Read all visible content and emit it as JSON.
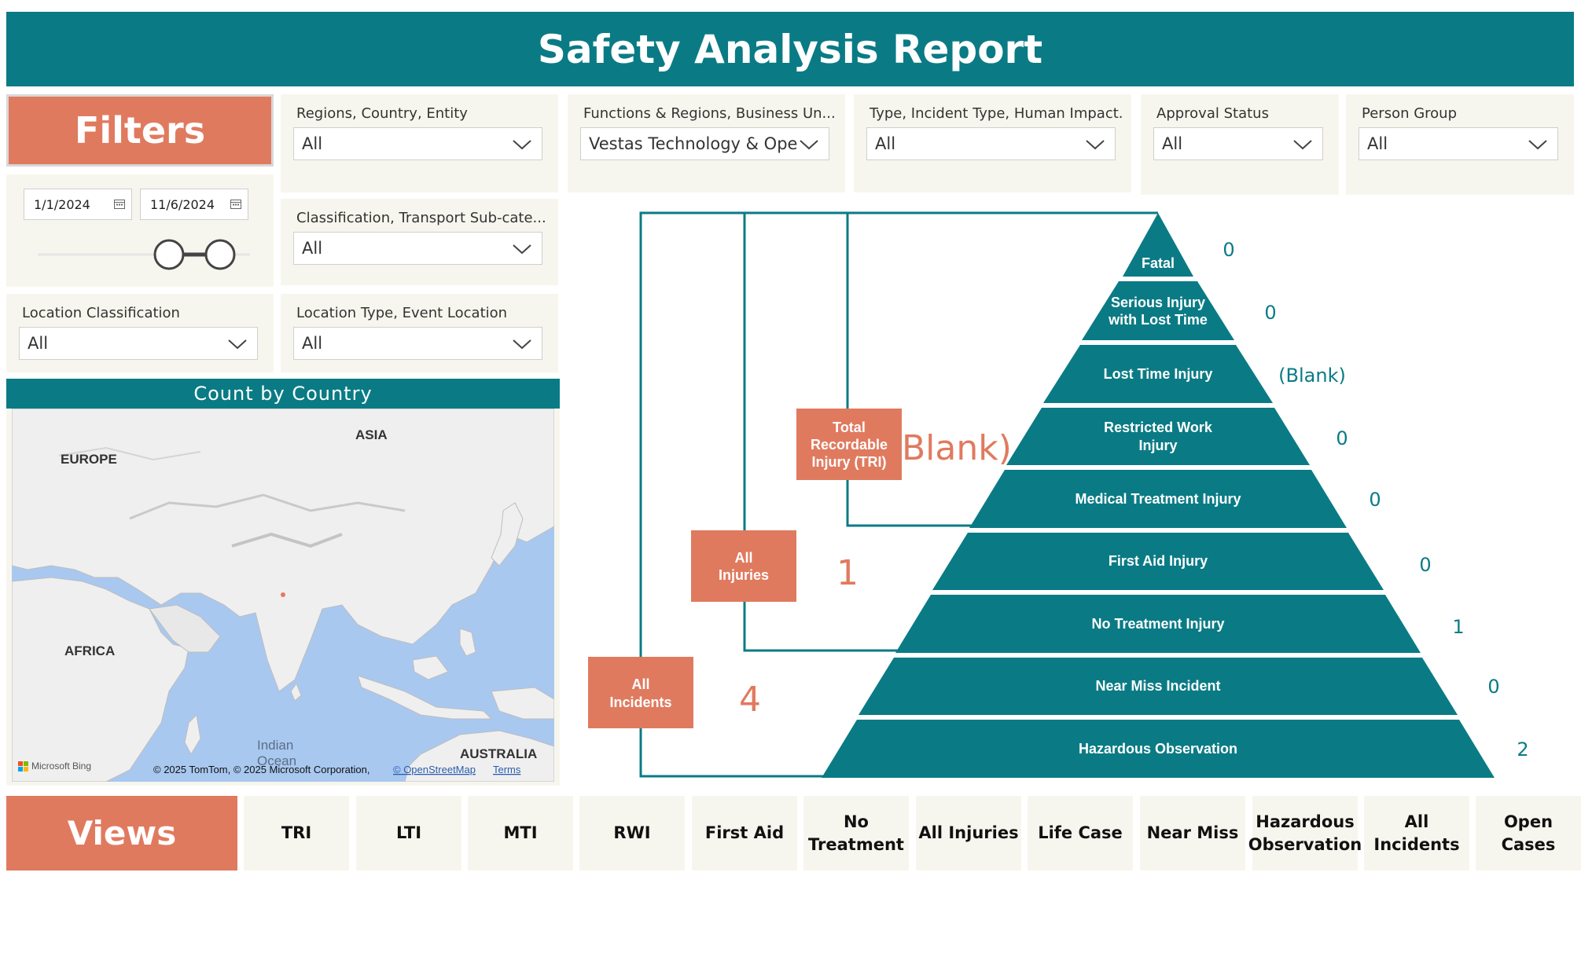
{
  "header": {
    "title": "Safety Analysis Report"
  },
  "filters": {
    "title": "Filters",
    "date_start": "1/1/2024",
    "date_end": "11/6/2024",
    "slicers": [
      {
        "label": "Regions, Country, Entity",
        "value": "All"
      },
      {
        "label": "Functions & Regions, Business Un...",
        "value": "Vestas Technology & Operati..."
      },
      {
        "label": "Type, Incident Type, Human Impact...",
        "value": "All"
      },
      {
        "label": "Approval Status",
        "value": "All"
      },
      {
        "label": "Person Group",
        "value": "All"
      },
      {
        "label": "Classification, Transport Sub-cate...",
        "value": "All"
      },
      {
        "label": "Location Classification",
        "value": "All"
      },
      {
        "label": "Location Type, Event Location",
        "value": "All"
      }
    ]
  },
  "map": {
    "title": "Count by Country",
    "labels": {
      "asia": "ASIA",
      "europe": "EUROPE",
      "africa": "AFRICA",
      "australia": "AUSTRALIA",
      "indian_ocean_1": "Indian",
      "indian_ocean_2": "Ocean"
    },
    "logo_text": "Microsoft Bing",
    "attribution": "© 2025 TomTom, © 2025 Microsoft Corporation,",
    "osm_link": "© OpenStreetMap",
    "terms_link": "Terms",
    "colors": {
      "water": "#a9c8f0",
      "land": "#efefef",
      "marker": "#e07a5f"
    }
  },
  "pyramid": {
    "levels": [
      {
        "label": "Fatal",
        "value": "0"
      },
      {
        "label": "Serious Injury with Lost Time",
        "value": "0"
      },
      {
        "label": "Lost Time Injury",
        "value": "(Blank)"
      },
      {
        "label": "Restricted Work Injury",
        "value": "0"
      },
      {
        "label": "Medical Treatment Injury",
        "value": "0"
      },
      {
        "label": "First Aid Injury",
        "value": "0"
      },
      {
        "label": "No Treatment Injury",
        "value": "1"
      },
      {
        "label": "Near Miss Incident",
        "value": "0"
      },
      {
        "label": "Hazardous Observation",
        "value": "2"
      }
    ],
    "groups": {
      "tri": {
        "label_l1": "Total",
        "label_l2": "Recordable",
        "label_l3": "Injury (TRI)",
        "value": "Blank)"
      },
      "all_injuries": {
        "label_l1": "All",
        "label_l2": "Injuries",
        "value": "1"
      },
      "all_incidents": {
        "label_l1": "All",
        "label_l2": "Incidents",
        "value": "4"
      }
    },
    "colors": {
      "teal": "#0a7b85",
      "orange": "#e07a5f"
    }
  },
  "views": {
    "title": "Views",
    "buttons": [
      {
        "l1": "TRI",
        "l2": ""
      },
      {
        "l1": "LTI",
        "l2": ""
      },
      {
        "l1": "MTI",
        "l2": ""
      },
      {
        "l1": "RWI",
        "l2": ""
      },
      {
        "l1": "First Aid",
        "l2": ""
      },
      {
        "l1": "No",
        "l2": "Treatment"
      },
      {
        "l1": "All Injuries",
        "l2": ""
      },
      {
        "l1": "Life Case",
        "l2": ""
      },
      {
        "l1": "Near Miss",
        "l2": ""
      },
      {
        "l1": "Hazardous",
        "l2": "Observation"
      },
      {
        "l1": "All",
        "l2": "Incidents"
      },
      {
        "l1": "Open Cases",
        "l2": ""
      }
    ]
  }
}
